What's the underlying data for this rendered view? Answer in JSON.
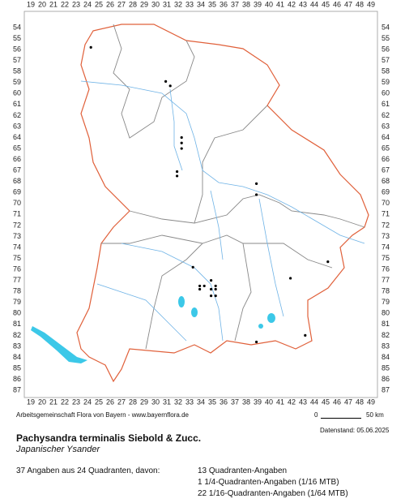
{
  "map": {
    "x_labels": [
      19,
      20,
      21,
      22,
      23,
      24,
      25,
      26,
      27,
      28,
      29,
      30,
      31,
      32,
      33,
      34,
      35,
      36,
      37,
      38,
      39,
      40,
      41,
      42,
      43,
      44,
      45,
      46,
      47,
      48,
      49
    ],
    "y_labels": [
      54,
      55,
      56,
      57,
      58,
      59,
      60,
      61,
      62,
      63,
      64,
      65,
      66,
      67,
      68,
      69,
      70,
      71,
      72,
      73,
      74,
      75,
      76,
      77,
      78,
      79,
      80,
      81,
      82,
      83,
      84,
      85,
      86,
      87
    ],
    "points": [
      {
        "x": 24.3,
        "y": 55.8
      },
      {
        "x": 30.9,
        "y": 58.9
      },
      {
        "x": 31.3,
        "y": 59.3
      },
      {
        "x": 32.3,
        "y": 64.0
      },
      {
        "x": 32.3,
        "y": 64.5
      },
      {
        "x": 32.3,
        "y": 65.0
      },
      {
        "x": 31.9,
        "y": 67.1
      },
      {
        "x": 31.9,
        "y": 67.5
      },
      {
        "x": 38.9,
        "y": 68.2
      },
      {
        "x": 38.9,
        "y": 69.2
      },
      {
        "x": 33.3,
        "y": 75.8
      },
      {
        "x": 45.2,
        "y": 75.3
      },
      {
        "x": 41.9,
        "y": 76.8
      },
      {
        "x": 34.9,
        "y": 77.0
      },
      {
        "x": 33.9,
        "y": 77.5
      },
      {
        "x": 34.3,
        "y": 77.5
      },
      {
        "x": 33.9,
        "y": 77.8
      },
      {
        "x": 34.9,
        "y": 77.8
      },
      {
        "x": 35.3,
        "y": 77.5
      },
      {
        "x": 35.3,
        "y": 77.8
      },
      {
        "x": 34.9,
        "y": 78.4
      },
      {
        "x": 35.3,
        "y": 78.4
      },
      {
        "x": 38.9,
        "y": 82.6
      },
      {
        "x": 43.2,
        "y": 82.0
      }
    ]
  },
  "credit": "Arbeitsgemeinschaft Flora von Bayern - www.bayernflora.de",
  "scale": {
    "start": "0",
    "end": "50 km"
  },
  "date": "Datenstand: 05.06.2025",
  "title": "Pachysandra terminalis Siebold & Zucc.",
  "subtitle": "Japanischer Ysander",
  "summary": "37 Angaben aus 24 Quadranten, davon:",
  "details": [
    "13 Quadranten-Angaben",
    "1 1/4-Quadranten-Angaben (1/16 MTB)",
    "22 1/16-Quadranten-Angaben (1/64 MTB)"
  ]
}
